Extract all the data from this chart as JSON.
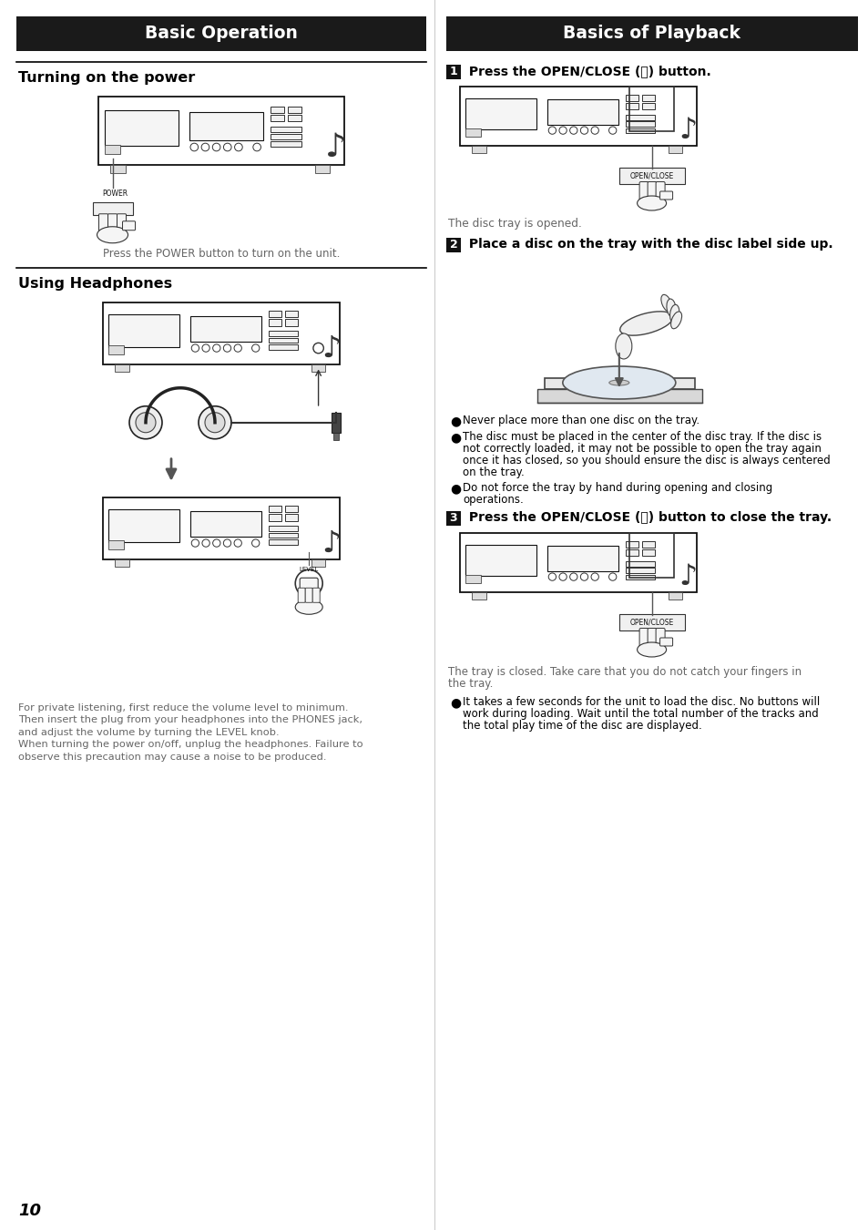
{
  "page_bg": "#ffffff",
  "header_bg": "#1a1a1a",
  "header_text_color": "#ffffff",
  "left_header": "Basic Operation",
  "right_header": "Basics of Playback",
  "divider_color": "#000000",
  "text_color": "#000000",
  "gray_text_color": "#666666",
  "page_number": "10",
  "left_section1_title": "Turning on the power",
  "left_section2_title": "Using Headphones",
  "left_caption1": "Press the POWER button to turn on the unit.",
  "left_caption2_line1": "For private listening, first reduce the volume level to minimum.",
  "left_caption2_line2": "Then insert the plug from your headphones into the PHONES jack,",
  "left_caption2_line3": "and adjust the volume by turning the LEVEL knob.",
  "left_caption2_line4": "When turning the power on/off, unplug the headphones. Failure to",
  "left_caption2_line5": "observe this precaution may cause a noise to be produced.",
  "right_step1_label": "1",
  "right_step1_text": " Press the OPEN/CLOSE (⏫) button.",
  "right_step1_caption": "The disc tray is opened.",
  "right_step2_label": "2",
  "right_step2_text": " Place a disc on the tray with the disc label side up.",
  "right_bullet1": "Never place more than one disc on the tray.",
  "right_bullet2_line1": "The disc must be placed in the center of the disc tray. If the disc is",
  "right_bullet2_line2": "not correctly loaded, it may not be possible to open the tray again",
  "right_bullet2_line3": "once it has closed, so you should ensure the disc is always centered",
  "right_bullet2_line4": "on the tray.",
  "right_bullet3_line1": "Do not force the tray by hand during opening and closing",
  "right_bullet3_line2": "operations.",
  "right_step3_label": "3",
  "right_step3_text": " Press the OPEN/CLOSE (⏫) button to close the tray.",
  "right_step3_cap1": "The tray is closed. Take care that you do not catch your fingers in",
  "right_step3_cap2": "the tray.",
  "right_bullet4_line1": "It takes a few seconds for the unit to load the disc. No buttons will",
  "right_bullet4_line2": "work during loading. Wait until the total number of the tracks and",
  "right_bullet4_line3": "the total play time of the disc are displayed."
}
